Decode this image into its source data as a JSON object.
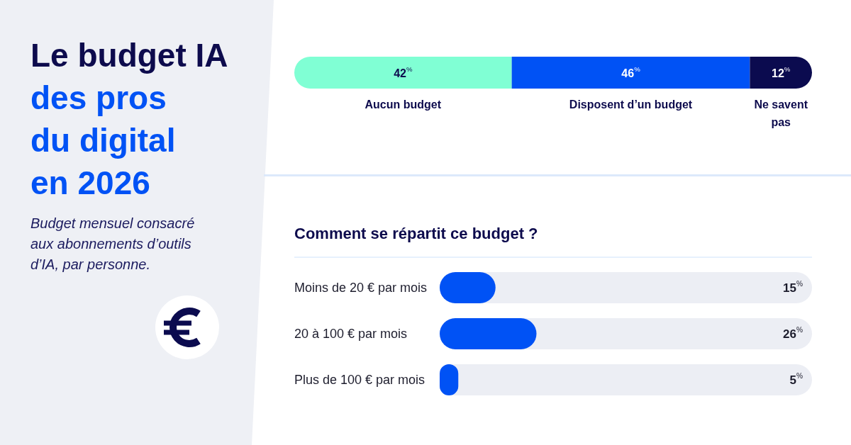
{
  "chart_data": [
    {
      "type": "other",
      "title": "Le budget IA\ndes pros\ndu digital\nen 2026",
      "subtitle": "Budget mensuel consacré\naux abonnements d’outils\nd’IA, par personne."
    },
    {
      "type": "bar",
      "orientation": "horizontal",
      "stacked": true,
      "categories": [
        null
      ],
      "xlim": [
        0,
        100
      ],
      "tick_labels": false,
      "legend": false,
      "series": [
        {
          "name": "Aucun budget",
          "color": "#80ffd4",
          "values": [
            42
          ],
          "value_labels": [
            "42$^{%}$"
          ]
        },
        {
          "name": "Disposent d’un budget",
          "color": "#0052f5",
          "values": [
            46
          ],
          "value_labels": [
            "46$^{%}$"
          ]
        },
        {
          "name": "Ne savent pas",
          "color": "#0b0b4f",
          "values": [
            12
          ],
          "value_labels": [
            "12$^{%}$"
          ]
        }
      ]
    },
    {
      "type": "bar",
      "orientation": "horizontal",
      "title": "Comment se répartit ce budget ?",
      "categories": [
        "Moins de 20 € par mois",
        "20 à 100 € par mois",
        "Plus de 100 € par mois"
      ],
      "values": [
        15,
        26,
        5
      ],
      "value_labels": [
        "15$^{%}$",
        "26$^{%}$",
        "5$^{%}$"
      ],
      "color": "#0052f5",
      "xlim": [
        0,
        100
      ],
      "tick_labels": "y"
    }
  ]
}
